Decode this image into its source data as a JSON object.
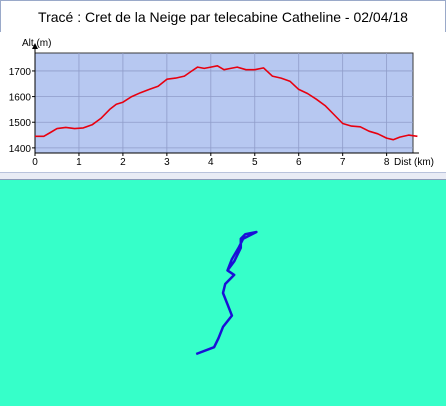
{
  "title": "Tracé : Cret de la Neige par telecabine Catheline - 02/04/18",
  "colors": {
    "plot_bg": "#b7c8f1",
    "grid": "#8f9cc9",
    "line": "#e8000f",
    "map_bg": "#36ffc9",
    "track": "#1a10d6"
  },
  "chart_data": {
    "type": "line",
    "title": "Tracé : Cret de la Neige par telecabine Catheline - 02/04/18",
    "xlabel": "Dist (km)",
    "ylabel": "Alt (m)",
    "xlim": [
      0,
      8.6
    ],
    "ylim": [
      1380,
      1770
    ],
    "xticks": [
      0,
      1,
      2,
      3,
      4,
      5,
      6,
      7,
      8
    ],
    "yticks": [
      1400,
      1500,
      1600,
      1700
    ],
    "grid": true,
    "series": [
      {
        "x": [
          0.0,
          0.2,
          0.35,
          0.5,
          0.7,
          0.9,
          1.1,
          1.3,
          1.5,
          1.7,
          1.85,
          2.0,
          2.2,
          2.4,
          2.6,
          2.8,
          3.0,
          3.2,
          3.4,
          3.55,
          3.7,
          3.85,
          4.0,
          4.15,
          4.3,
          4.45,
          4.6,
          4.8,
          5.0,
          5.2,
          5.4,
          5.6,
          5.8,
          6.0,
          6.2,
          6.4,
          6.6,
          6.8,
          7.0,
          7.2,
          7.4,
          7.6,
          7.8,
          8.0,
          8.15,
          8.3,
          8.5,
          8.7
        ],
        "y": [
          1445,
          1445,
          1460,
          1475,
          1480,
          1475,
          1478,
          1490,
          1515,
          1550,
          1570,
          1578,
          1600,
          1615,
          1628,
          1640,
          1668,
          1672,
          1680,
          1698,
          1715,
          1710,
          1715,
          1720,
          1705,
          1710,
          1715,
          1705,
          1705,
          1712,
          1680,
          1672,
          1660,
          1628,
          1612,
          1590,
          1565,
          1530,
          1495,
          1485,
          1482,
          1465,
          1455,
          1438,
          1432,
          1442,
          1450,
          1445
        ]
      }
    ]
  },
  "map": {
    "track_points": [
      [
        0.44,
        0.77
      ],
      [
        0.48,
        0.74
      ],
      [
        0.49,
        0.7
      ],
      [
        0.5,
        0.65
      ],
      [
        0.52,
        0.6
      ],
      [
        0.51,
        0.55
      ],
      [
        0.5,
        0.5
      ],
      [
        0.505,
        0.46
      ],
      [
        0.525,
        0.42
      ],
      [
        0.51,
        0.4
      ],
      [
        0.525,
        0.36
      ],
      [
        0.54,
        0.3
      ],
      [
        0.54,
        0.26
      ],
      [
        0.55,
        0.24
      ],
      [
        0.575,
        0.23
      ],
      [
        0.545,
        0.26
      ],
      [
        0.535,
        0.3
      ],
      [
        0.52,
        0.35
      ],
      [
        0.51,
        0.4
      ]
    ]
  }
}
